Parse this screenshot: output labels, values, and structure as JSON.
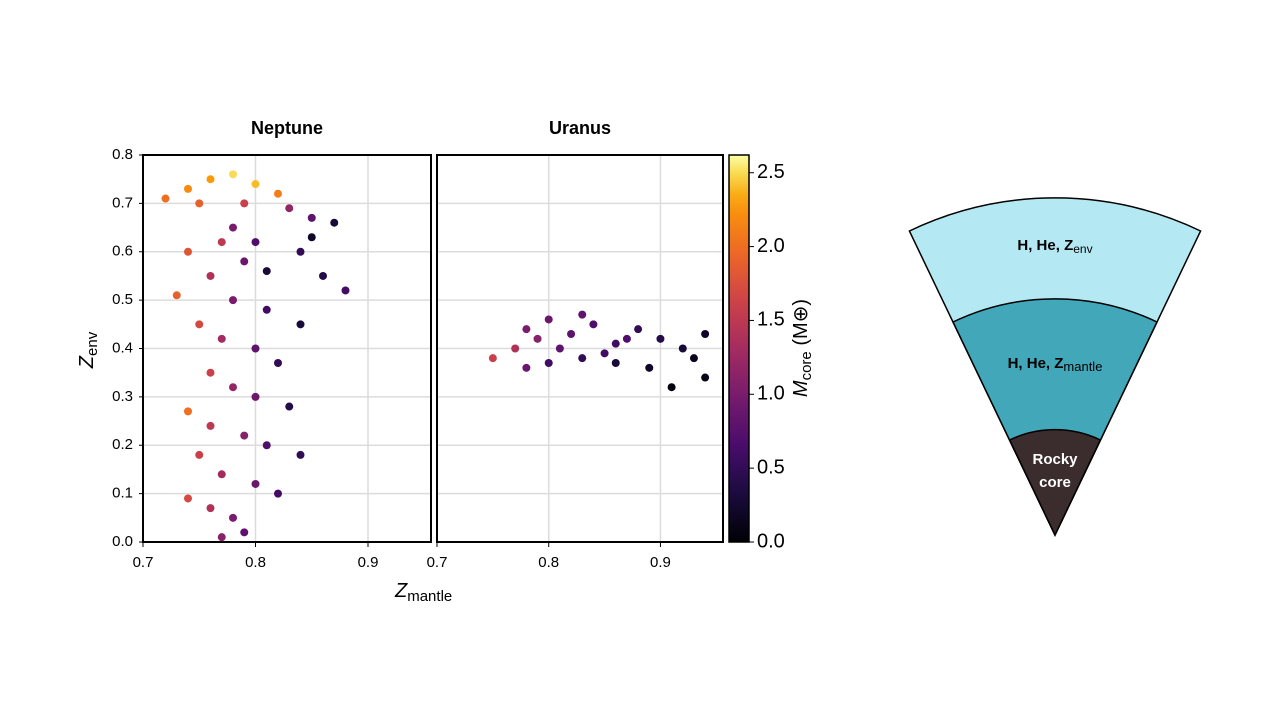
{
  "chart_data": [
    {
      "type": "scatter",
      "title": "Neptune",
      "x_label": "Z",
      "x_label_sub": "mantle",
      "y_label": "Z",
      "y_label_sub": "env",
      "xlim": [
        0.7,
        0.956
      ],
      "ylim": [
        0,
        0.8
      ],
      "xticks": [
        0.7,
        0.8,
        0.9
      ],
      "yticks": [
        {
          "value": 0,
          "label": "0.0"
        },
        0.1,
        0.2,
        0.3,
        0.4,
        0.5,
        0.6,
        0.7,
        0.8
      ],
      "grid": true,
      "x": [
        0.72,
        0.74,
        0.76,
        0.78,
        0.8,
        0.82,
        0.75,
        0.79,
        0.83,
        0.85,
        0.87,
        0.78,
        0.8,
        0.84,
        0.86,
        0.88,
        0.74,
        0.76,
        0.78,
        0.81,
        0.84,
        0.73,
        0.75,
        0.77,
        0.8,
        0.82,
        0.76,
        0.78,
        0.8,
        0.83,
        0.74,
        0.76,
        0.79,
        0.81,
        0.84,
        0.75,
        0.77,
        0.8,
        0.82,
        0.74,
        0.76,
        0.78,
        0.79,
        0.77,
        0.85,
        0.81,
        0.79,
        0.77
      ],
      "values": [
        0.71,
        0.73,
        0.75,
        0.76,
        0.74,
        0.72,
        0.7,
        0.7,
        0.69,
        0.67,
        0.66,
        0.65,
        0.62,
        0.6,
        0.55,
        0.52,
        0.6,
        0.55,
        0.5,
        0.48,
        0.45,
        0.51,
        0.45,
        0.42,
        0.4,
        0.37,
        0.35,
        0.32,
        0.3,
        0.28,
        0.27,
        0.24,
        0.22,
        0.2,
        0.18,
        0.18,
        0.14,
        0.12,
        0.1,
        0.09,
        0.07,
        0.05,
        0.02,
        0.01,
        0.63,
        0.56,
        0.58,
        0.62
      ],
      "mcore": [
        2.0,
        2.2,
        2.3,
        2.5,
        2.4,
        2.1,
        1.9,
        1.6,
        1.2,
        0.8,
        0.3,
        1.0,
        0.7,
        0.5,
        0.4,
        0.6,
        1.8,
        1.4,
        1.0,
        0.6,
        0.3,
        1.9,
        1.7,
        1.3,
        0.8,
        0.5,
        1.6,
        1.2,
        0.9,
        0.4,
        2.0,
        1.5,
        1.1,
        0.7,
        0.5,
        1.6,
        1.3,
        0.9,
        0.6,
        1.7,
        1.4,
        1.0,
        0.8,
        1.1,
        0.2,
        0.3,
        0.9,
        1.5
      ]
    },
    {
      "type": "scatter",
      "title": "Uranus",
      "xlim": [
        0.7,
        0.956
      ],
      "ylim": [
        0,
        0.8
      ],
      "xticks": [
        0.7,
        0.8,
        0.9
      ],
      "yticks": [
        0,
        0.1,
        0.2,
        0.3,
        0.4,
        0.5,
        0.6,
        0.7,
        0.8
      ],
      "grid": true,
      "x": [
        0.75,
        0.77,
        0.78,
        0.8,
        0.82,
        0.84,
        0.86,
        0.88,
        0.9,
        0.92,
        0.94,
        0.94,
        0.91,
        0.89,
        0.86,
        0.83,
        0.8,
        0.78,
        0.81,
        0.85,
        0.87,
        0.93,
        0.79,
        0.83
      ],
      "values": [
        0.38,
        0.4,
        0.44,
        0.46,
        0.43,
        0.45,
        0.41,
        0.44,
        0.42,
        0.4,
        0.43,
        0.34,
        0.32,
        0.36,
        0.37,
        0.38,
        0.37,
        0.36,
        0.4,
        0.39,
        0.42,
        0.38,
        0.42,
        0.47
      ],
      "mcore": [
        1.6,
        1.4,
        1.0,
        0.9,
        0.8,
        0.7,
        0.6,
        0.5,
        0.4,
        0.3,
        0.2,
        0.1,
        0.05,
        0.2,
        0.3,
        0.5,
        0.6,
        0.9,
        0.8,
        0.6,
        0.7,
        0.15,
        1.1,
        0.8
      ]
    }
  ],
  "colorbar": {
    "label": "M",
    "label_sub": "core",
    "label_rest": " (M⊕)",
    "lim": [
      0,
      2.62
    ],
    "ticks": [
      {
        "value": 0,
        "label": "0.0"
      },
      0.5,
      {
        "value": 1,
        "label": "1.0"
      },
      1.5,
      {
        "value": 2,
        "label": "2.0"
      },
      2.5
    ]
  },
  "diagram": {
    "layers": [
      {
        "text": "H, He, Z",
        "sub": "env"
      },
      {
        "text": "H, He, Z",
        "sub": "mantle"
      },
      {
        "text": "Rocky",
        "text2": "core"
      }
    ]
  }
}
